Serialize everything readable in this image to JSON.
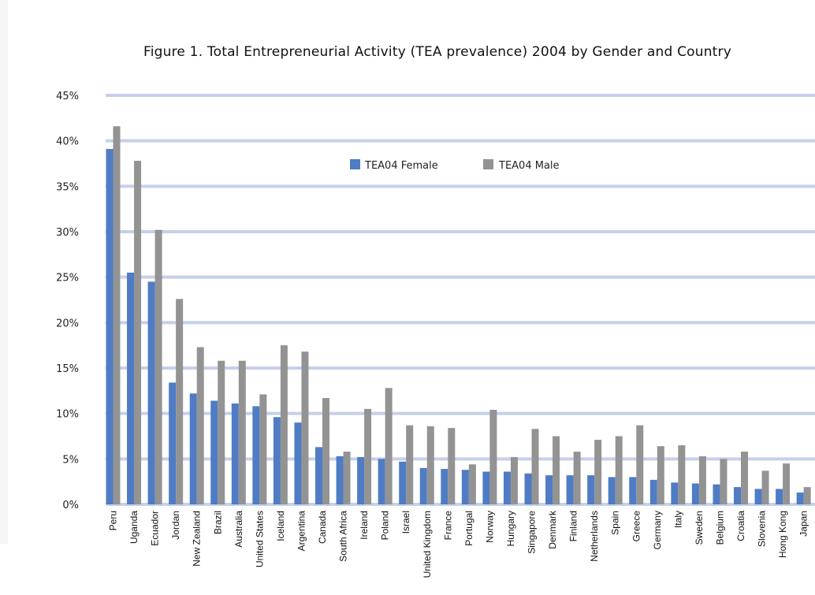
{
  "chart_data": {
    "type": "bar",
    "title": "Figure 1. Total Entrepreneurial Activity (TEA prevalence) 2004 by Gender and Country",
    "xlabel": "",
    "ylabel": "",
    "ylim": [
      0,
      45
    ],
    "yticks": [
      "0%",
      "5%",
      "10%",
      "15%",
      "20%",
      "25%",
      "30%",
      "35%",
      "40%",
      "45%"
    ],
    "grid": true,
    "legend_position": "top-center",
    "categories": [
      "Peru",
      "Uganda",
      "Ecuador",
      "Jordan",
      "New Zealand",
      "Brazil",
      "Australia",
      "United States",
      "Iceland",
      "Argentina",
      "Canada",
      "South Africa",
      "Ireland",
      "Poland",
      "Israel",
      "United Kingdom",
      "France",
      "Portugal",
      "Norway",
      "Hungary",
      "Singapore",
      "Denmark",
      "Finland",
      "Netherlands",
      "Spain",
      "Greece",
      "Germany",
      "Italy",
      "Sweden",
      "Belgium",
      "Croatia",
      "Slovenia",
      "Hong Kong",
      "Japan"
    ],
    "series": [
      {
        "name": "TEA04 Female",
        "color": "#4f7cc4",
        "values": [
          39.1,
          25.5,
          24.5,
          13.4,
          12.2,
          11.4,
          11.1,
          10.8,
          9.6,
          9.0,
          6.3,
          5.3,
          5.2,
          5.0,
          4.7,
          4.0,
          3.9,
          3.8,
          3.6,
          3.6,
          3.4,
          3.2,
          3.2,
          3.2,
          3.0,
          3.0,
          2.7,
          2.4,
          2.3,
          2.2,
          1.9,
          1.7,
          1.7,
          1.3
        ]
      },
      {
        "name": "TEA04 Male",
        "color": "#939393",
        "values": [
          41.6,
          37.8,
          30.2,
          22.6,
          17.3,
          15.8,
          15.8,
          12.1,
          17.5,
          16.8,
          11.7,
          5.8,
          10.5,
          12.8,
          8.7,
          8.6,
          8.4,
          4.4,
          10.4,
          5.2,
          8.3,
          7.5,
          5.8,
          7.1,
          7.5,
          8.7,
          6.4,
          6.5,
          5.3,
          5.0,
          5.8,
          3.7,
          4.5,
          1.9
        ]
      }
    ]
  }
}
